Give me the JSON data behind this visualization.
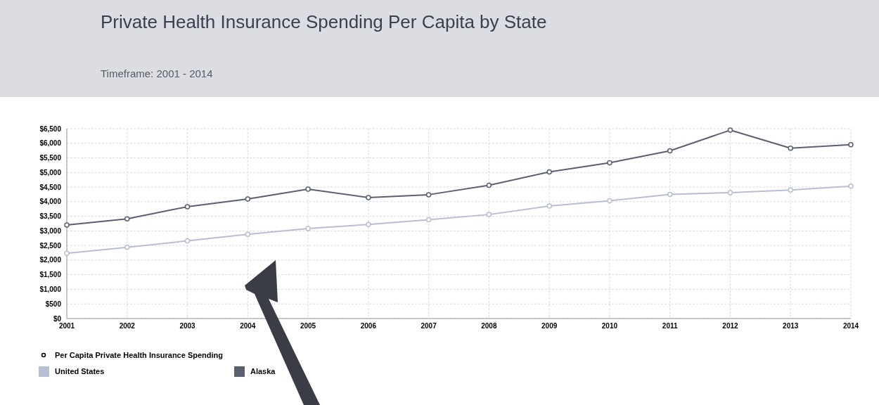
{
  "chart_data": {
    "type": "line",
    "title": "Private Health Insurance Spending Per Capita by State",
    "subtitle": "Timeframe: 2001 - 2014",
    "legend_title": "Per Capita Private Health Insurance Spending",
    "x": [
      2001,
      2002,
      2003,
      2004,
      2005,
      2006,
      2007,
      2008,
      2009,
      2010,
      2011,
      2012,
      2013,
      2014
    ],
    "series": [
      {
        "name": "United States",
        "color": "#b9bed2",
        "values": [
          2230,
          2440,
          2660,
          2880,
          3080,
          3220,
          3380,
          3560,
          3850,
          4030,
          4250,
          4310,
          4400,
          4530
        ]
      },
      {
        "name": "Alaska",
        "color": "#5b6070",
        "values": [
          3200,
          3410,
          3830,
          4090,
          4430,
          4140,
          4240,
          4560,
          5020,
          5330,
          5740,
          6450,
          5830,
          5950
        ]
      }
    ],
    "xlim": [
      2001,
      2014
    ],
    "xticks": [
      2001,
      2002,
      2003,
      2004,
      2005,
      2006,
      2007,
      2008,
      2009,
      2010,
      2011,
      2012,
      2013,
      2014
    ],
    "ylim": [
      0,
      6500
    ],
    "yticks": [
      {
        "value": 0,
        "label": "$0"
      },
      {
        "value": 500,
        "label": "$500"
      },
      {
        "value": 1000,
        "label": "$1,000"
      },
      {
        "value": 1500,
        "label": "$1,500"
      },
      {
        "value": 2000,
        "label": "$2,000"
      },
      {
        "value": 2500,
        "label": "$2,500"
      },
      {
        "value": 3000,
        "label": "$3,000"
      },
      {
        "value": 3500,
        "label": "$3,500"
      },
      {
        "value": 4000,
        "label": "$4,000"
      },
      {
        "value": 4500,
        "label": "$4,500"
      },
      {
        "value": 5000,
        "label": "$5,000"
      },
      {
        "value": 5500,
        "label": "$5,500"
      },
      {
        "value": 6000,
        "label": "$6,000"
      },
      {
        "value": 6500,
        "label": "$6,500"
      }
    ],
    "grid": true,
    "legend": "bottom",
    "marker": "circle",
    "line_style": "solid"
  }
}
